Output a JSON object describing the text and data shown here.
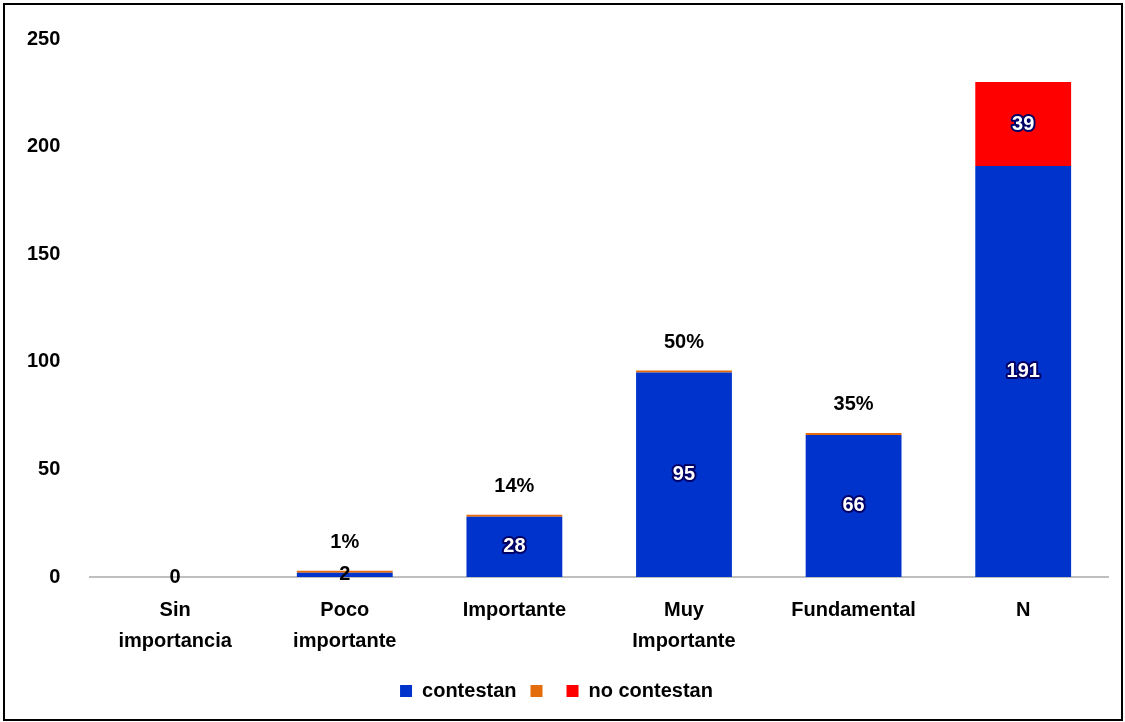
{
  "chart_data": {
    "type": "bar",
    "stacked": true,
    "categories": [
      "Sin importancia",
      "Poco importante",
      "Importante",
      "Muy Importante",
      "Fundamental",
      "N"
    ],
    "series": [
      {
        "name": "contestan",
        "color": "#0033cc",
        "values": [
          0,
          2,
          28,
          95,
          66,
          191
        ],
        "value_labels": [
          "0",
          "2",
          "28",
          "95",
          "66",
          "191"
        ]
      },
      {
        "color": "#e46c0a",
        "values": [
          null,
          0.01,
          0.14,
          0.5,
          0.35,
          null
        ],
        "value_labels": [
          null,
          "1%",
          "14%",
          "50%",
          "35%",
          null
        ]
      },
      {
        "name": "no contestan",
        "color": "#ff0000",
        "values": [
          null,
          null,
          null,
          null,
          null,
          39
        ],
        "value_labels": [
          null,
          null,
          null,
          null,
          null,
          "39"
        ]
      }
    ],
    "ylim": [
      0,
      250
    ],
    "yticks": [
      0,
      50,
      100,
      150,
      200,
      250
    ],
    "grid": false,
    "legend": "bottom"
  }
}
